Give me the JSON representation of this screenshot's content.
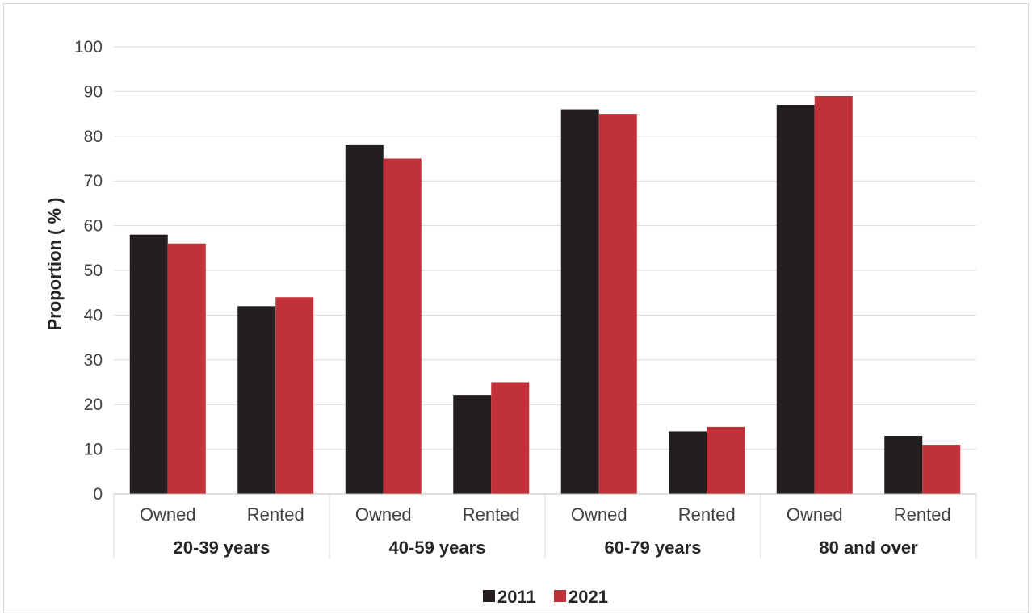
{
  "chart_data": {
    "type": "bar",
    "ylabel": "Proportion ( % )",
    "xlabel": "",
    "ylim": [
      0,
      100
    ],
    "yticks": [
      0,
      10,
      20,
      30,
      40,
      50,
      60,
      70,
      80,
      90,
      100
    ],
    "grid": true,
    "legend_position": "bottom-center",
    "groups": [
      {
        "label": "20-39 years",
        "categories": [
          "Owned",
          "Rented"
        ]
      },
      {
        "label": "40-59 years",
        "categories": [
          "Owned",
          "Rented"
        ]
      },
      {
        "label": "60-79 years",
        "categories": [
          "Owned",
          "Rented"
        ]
      },
      {
        "label": "80 and over",
        "categories": [
          "Owned",
          "Rented"
        ]
      }
    ],
    "categories": [
      "Owned",
      "Rented",
      "Owned",
      "Rented",
      "Owned",
      "Rented",
      "Owned",
      "Rented"
    ],
    "series": [
      {
        "name": "2011",
        "color": "#231f20",
        "values": [
          58,
          42,
          78,
          22,
          86,
          14,
          87,
          13
        ]
      },
      {
        "name": "2021",
        "color": "#c1313a",
        "values": [
          56,
          44,
          75,
          25,
          85,
          15,
          89,
          11
        ]
      }
    ]
  }
}
